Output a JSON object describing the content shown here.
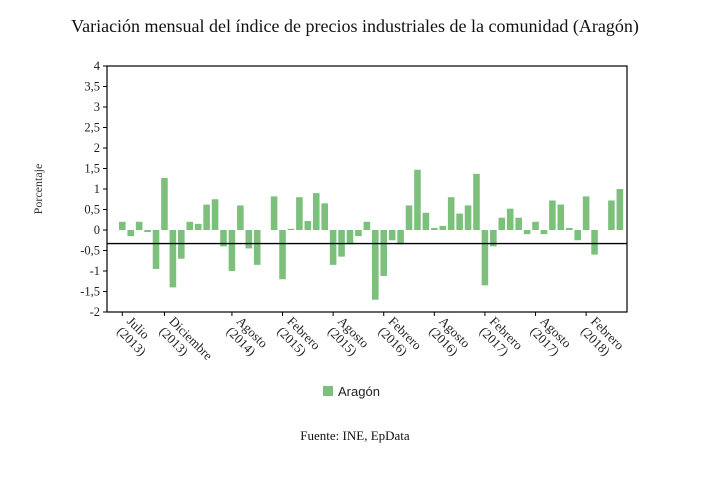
{
  "title": "Variación mensual del índice de precios industriales de la comunidad (Aragón)",
  "source": "Fuente: INE, EpData",
  "colors": {
    "bar": "#7cc07c",
    "axis": "#000000",
    "text": "#222222"
  },
  "chart_data": {
    "type": "bar",
    "ylabel": "Porcentaje",
    "xlabel": "",
    "ylim": [
      -2,
      4
    ],
    "yticks": [
      "4",
      "3,5",
      "3",
      "2,5",
      "2",
      "1,5",
      "1",
      "0,5",
      "0",
      "-0,5",
      "-1",
      "-1,5",
      "-2"
    ],
    "grid": false,
    "legend_position": "bottom",
    "reference_line": -0.33,
    "x_tick_labels": [
      {
        "line1": "Julio",
        "line2": "(2013)",
        "index": 0
      },
      {
        "line1": "Diciembre",
        "line2": "(2013)",
        "index": 5
      },
      {
        "line1": "Agosto",
        "line2": "(2014)",
        "index": 13
      },
      {
        "line1": "Febrero",
        "line2": "(2015)",
        "index": 19
      },
      {
        "line1": "Agosto",
        "line2": "(2015)",
        "index": 25
      },
      {
        "line1": "Febrero",
        "line2": "(2016)",
        "index": 31
      },
      {
        "line1": "Agosto",
        "line2": "(2016)",
        "index": 37
      },
      {
        "line1": "Febrero",
        "line2": "(2017)",
        "index": 43
      },
      {
        "line1": "Agosto",
        "line2": "(2017)",
        "index": 49
      },
      {
        "line1": "Febrero",
        "line2": "(2018)",
        "index": 55
      }
    ],
    "series": [
      {
        "name": "Aragón",
        "values": [
          0.2,
          -0.15,
          0.2,
          -0.05,
          -0.95,
          1.27,
          -1.4,
          -0.7,
          0.2,
          0.15,
          0.62,
          0.75,
          -0.4,
          -1.0,
          0.6,
          -0.45,
          -0.85,
          0.0,
          0.82,
          -1.2,
          0.03,
          0.8,
          0.22,
          0.9,
          0.65,
          -0.85,
          -0.65,
          -0.35,
          -0.15,
          0.2,
          -1.7,
          -1.12,
          -0.25,
          -0.35,
          0.6,
          1.47,
          0.42,
          0.05,
          0.1,
          0.8,
          0.4,
          0.6,
          1.37,
          -1.35,
          -0.4,
          0.3,
          0.52,
          0.3,
          -0.1,
          0.2,
          -0.1,
          0.72,
          0.62,
          0.05,
          -0.25,
          0.82,
          -0.6,
          0.0,
          0.72,
          1.0
        ]
      }
    ]
  }
}
